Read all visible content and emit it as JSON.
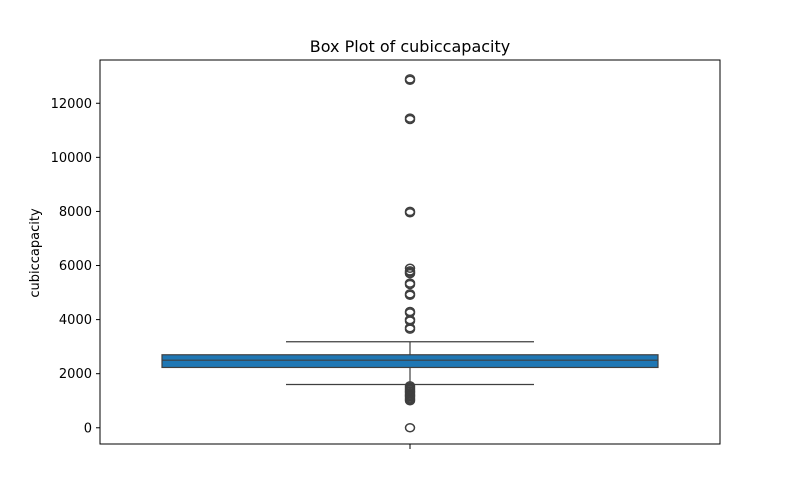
{
  "chart_data": {
    "type": "box",
    "title": "Box Plot of cubiccapacity",
    "xlabel": "",
    "ylabel": "cubiccapacity",
    "ylim": [
      -600,
      13600
    ],
    "yticks": [
      0,
      2000,
      4000,
      6000,
      8000,
      10000,
      12000
    ],
    "ytick_labels": [
      "0",
      "2000",
      "4000",
      "6000",
      "8000",
      "10000",
      "12000"
    ],
    "grid": false,
    "box_color": "#1f77b4",
    "line_color": "#3f3f3f",
    "series": [
      {
        "whisker_low": 1600,
        "q1": 2230,
        "median": 2500,
        "q3": 2700,
        "whisker_high": 3180,
        "outliers": [
          0,
          1000,
          1050,
          1100,
          1150,
          1200,
          1250,
          1300,
          1350,
          1400,
          1450,
          1500,
          1550,
          3650,
          3700,
          3950,
          4000,
          4250,
          4300,
          4900,
          4950,
          5300,
          5350,
          5700,
          5750,
          5800,
          5900,
          7950,
          8000,
          11400,
          11450,
          12850,
          12900
        ]
      }
    ]
  }
}
